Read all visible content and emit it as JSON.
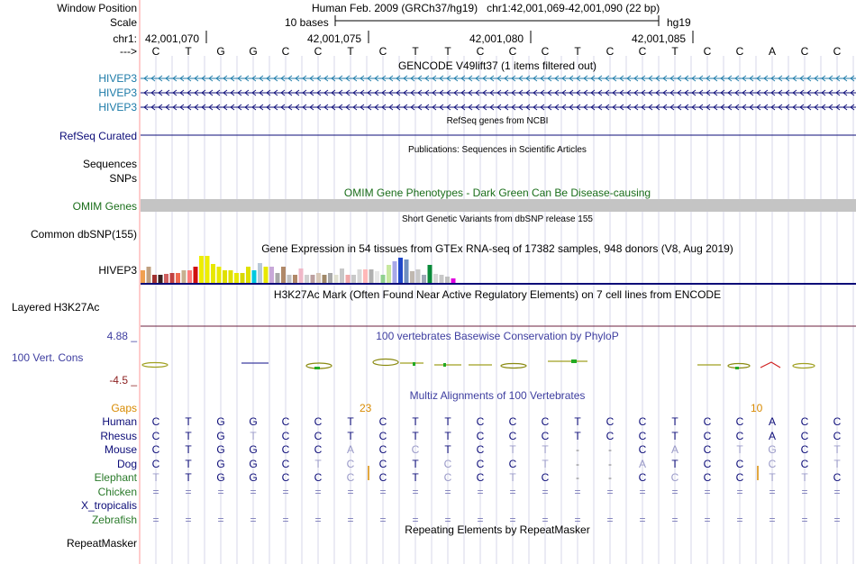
{
  "colors": {
    "gencode": "#1c7aa8",
    "refseq": "#0c0c78",
    "omim": "#1a6e1a",
    "h3k27ac": "#6b1f3e",
    "phylop": "#3e3ea0",
    "phylop_max": "#3e3ea0",
    "phylop_min": "#8b1d1d",
    "gaps": "#d88a00",
    "species": "#0c0c78",
    "elephant": "#2a7a2a",
    "grid": "#d7d7e8",
    "guide": "#ff9a9a"
  },
  "header": {
    "window_position_label": "Window Position",
    "window_position_value": "Human Feb. 2009 (GRCh37/hg19)   chr1:42,001,069-42,001,090 (22 bp)",
    "scale_label": "Scale",
    "scale_value": "10 bases",
    "assembly": "hg19",
    "chrom_label": "chr1:",
    "chrom_ticks": [
      "42,001,070",
      "42,001,075",
      "42,001,080",
      "42,001,085"
    ],
    "strand_label": "--->"
  },
  "reference_bases": [
    "C",
    "T",
    "G",
    "G",
    "C",
    "C",
    "T",
    "C",
    "T",
    "T",
    "C",
    "C",
    "C",
    "T",
    "C",
    "C",
    "T",
    "C",
    "C",
    "A",
    "C",
    "C"
  ],
  "tracks": {
    "gencode": {
      "title": "GENCODE V49lift37 (1 items filtered out)",
      "items": [
        "HIVEP3",
        "HIVEP3",
        "HIVEP3"
      ]
    },
    "refseq": {
      "title": "RefSeq genes from NCBI",
      "label": "RefSeq Curated"
    },
    "publications": {
      "title": "Publications: Sequences in Scientific Articles",
      "labels": [
        "Sequences",
        "SNPs"
      ]
    },
    "omim": {
      "title": "OMIM Gene Phenotypes - Dark Green Can Be Disease-causing",
      "label": "OMIM Genes"
    },
    "dbsnp": {
      "title": "Short Genetic Variants from dbSNP release 155",
      "label": "Common dbSNP(155)"
    },
    "gtex": {
      "title": "Gene Expression in 54 tissues from GTEx RNA-seq of 17382 samples, 948 donors (V8, Aug 2019)",
      "label": "HIVEP3"
    },
    "h3k27ac": {
      "title": "H3K27Ac Mark (Often Found Near Active Regulatory Elements) on 7 cell lines from ENCODE",
      "label": "Layered H3K27Ac"
    },
    "phylop": {
      "title": "100 vertebrates Basewise Conservation by PhyloP",
      "label": "100 Vert. Cons",
      "max": "4.88 _",
      "min": "-4.5 _"
    },
    "multiz": {
      "title": "Multiz Alignments of 100 Vertebrates",
      "gaps_label": "Gaps",
      "gap_counts": [
        "23",
        "10"
      ],
      "species": [
        "Human",
        "Rhesus",
        "Mouse",
        "Dog",
        "Elephant",
        "Chicken",
        "X_tropicalis",
        "Zebrafish"
      ]
    },
    "repeatmasker": {
      "title": "Repeating Elements by RepeatMasker",
      "label": "RepeatMasker"
    }
  },
  "alignment_rows": [
    [
      "C",
      "T",
      "G",
      "G",
      "C",
      "C",
      "T",
      "C",
      "T",
      "T",
      "C",
      "C",
      "C",
      "T",
      "C",
      "C",
      "T",
      "C",
      "C",
      "A",
      "C",
      "C"
    ],
    [
      "C",
      "T",
      "G",
      "T",
      "C",
      "C",
      "T",
      "C",
      "T",
      "T",
      "C",
      "C",
      "C",
      "T",
      "C",
      "C",
      "T",
      "C",
      "C",
      "A",
      "C",
      "C"
    ],
    [
      "C",
      "T",
      "G",
      "G",
      "C",
      "C",
      "A",
      "C",
      "C",
      "T",
      "C",
      "T",
      "T",
      "-",
      "-",
      "C",
      "A",
      "C",
      "T",
      "G",
      "C",
      "T"
    ],
    [
      "C",
      "T",
      "G",
      "G",
      "C",
      "T",
      "C",
      "C",
      "T",
      "C",
      "C",
      "C",
      "T",
      "-",
      "-",
      "A",
      "T",
      "C",
      "C",
      "C",
      "C",
      "T"
    ],
    [
      "T",
      "T",
      "G",
      "G",
      "C",
      "C",
      "C",
      "C",
      "T",
      "C",
      "C",
      "T",
      "C",
      "-",
      "-",
      "C",
      "C",
      "C",
      "C",
      "T",
      "T",
      "C"
    ],
    [
      "=",
      "=",
      "=",
      "=",
      "=",
      "=",
      "=",
      "=",
      "=",
      "=",
      "=",
      "=",
      "=",
      "=",
      "=",
      "=",
      "=",
      "=",
      "=",
      "=",
      "=",
      "="
    ],
    [
      "",
      "",
      "",
      "",
      "",
      "",
      "",
      "",
      "",
      "",
      "",
      "",
      "",
      "",
      "",
      "",
      "",
      "",
      "",
      "",
      "",
      ""
    ],
    [
      "=",
      "=",
      "=",
      "=",
      "=",
      "=",
      "=",
      "=",
      "=",
      "=",
      "=",
      "=",
      "=",
      "=",
      "=",
      "=",
      "=",
      "=",
      "=",
      "=",
      "=",
      "="
    ]
  ],
  "chart_data": {
    "type": "bar",
    "title": "Gene Expression in 54 tissues from GTEx RNA-seq of 17382 samples, 948 donors (V8, Aug 2019)",
    "series": [
      {
        "name": "HIVEP3",
        "values": [
          14,
          18,
          9,
          9,
          10,
          11,
          11,
          14,
          14,
          18,
          30,
          30,
          21,
          18,
          14,
          14,
          11,
          11,
          18,
          14,
          22,
          18,
          18,
          11,
          18,
          9,
          9,
          16,
          9,
          9,
          11,
          9,
          11,
          9,
          16,
          9,
          9,
          15,
          15,
          15,
          13,
          9,
          20,
          24,
          28,
          26,
          13,
          15,
          9,
          20,
          10,
          9,
          7,
          5
        ]
      }
    ],
    "colors": [
      "#f0a050",
      "#c0a080",
      "#a03030",
      "#3a2020",
      "#d06060",
      "#c04040",
      "#f06a50",
      "#c8b090",
      "#ff7a7a",
      "#d01010",
      "#eeee00",
      "#eeee00",
      "#e8e800",
      "#e8e800",
      "#e0e000",
      "#e0e000",
      "#e8e800",
      "#d8d800",
      "#e0e000",
      "#00c8e0",
      "#b8c8d8",
      "#e8e800",
      "#c8a8d8",
      "#a8a8a8",
      "#b08868",
      "#c0c0c0",
      "#b08868",
      "#f0b8c8",
      "#d0d0d0",
      "#bca0a0",
      "#d8c8b8",
      "#a08868",
      "#a8a8a8",
      "#e0e0d0",
      "#c8c8c8",
      "#f0a8a8",
      "#c8c8c8",
      "#d8d8d8",
      "#ffb8b8",
      "#b0b0b0",
      "#e8e8e8",
      "#90d090",
      "#c8e8a0",
      "#a8a8e8",
      "#2048c8",
      "#7090c0",
      "#c0b8b0",
      "#c8c8c8",
      "#a0a8b8",
      "#0a8a3a",
      "#d8d8d8",
      "#c8c8c8",
      "#c0c0c0",
      "#e000e0"
    ],
    "ylim": [
      0,
      30
    ]
  }
}
